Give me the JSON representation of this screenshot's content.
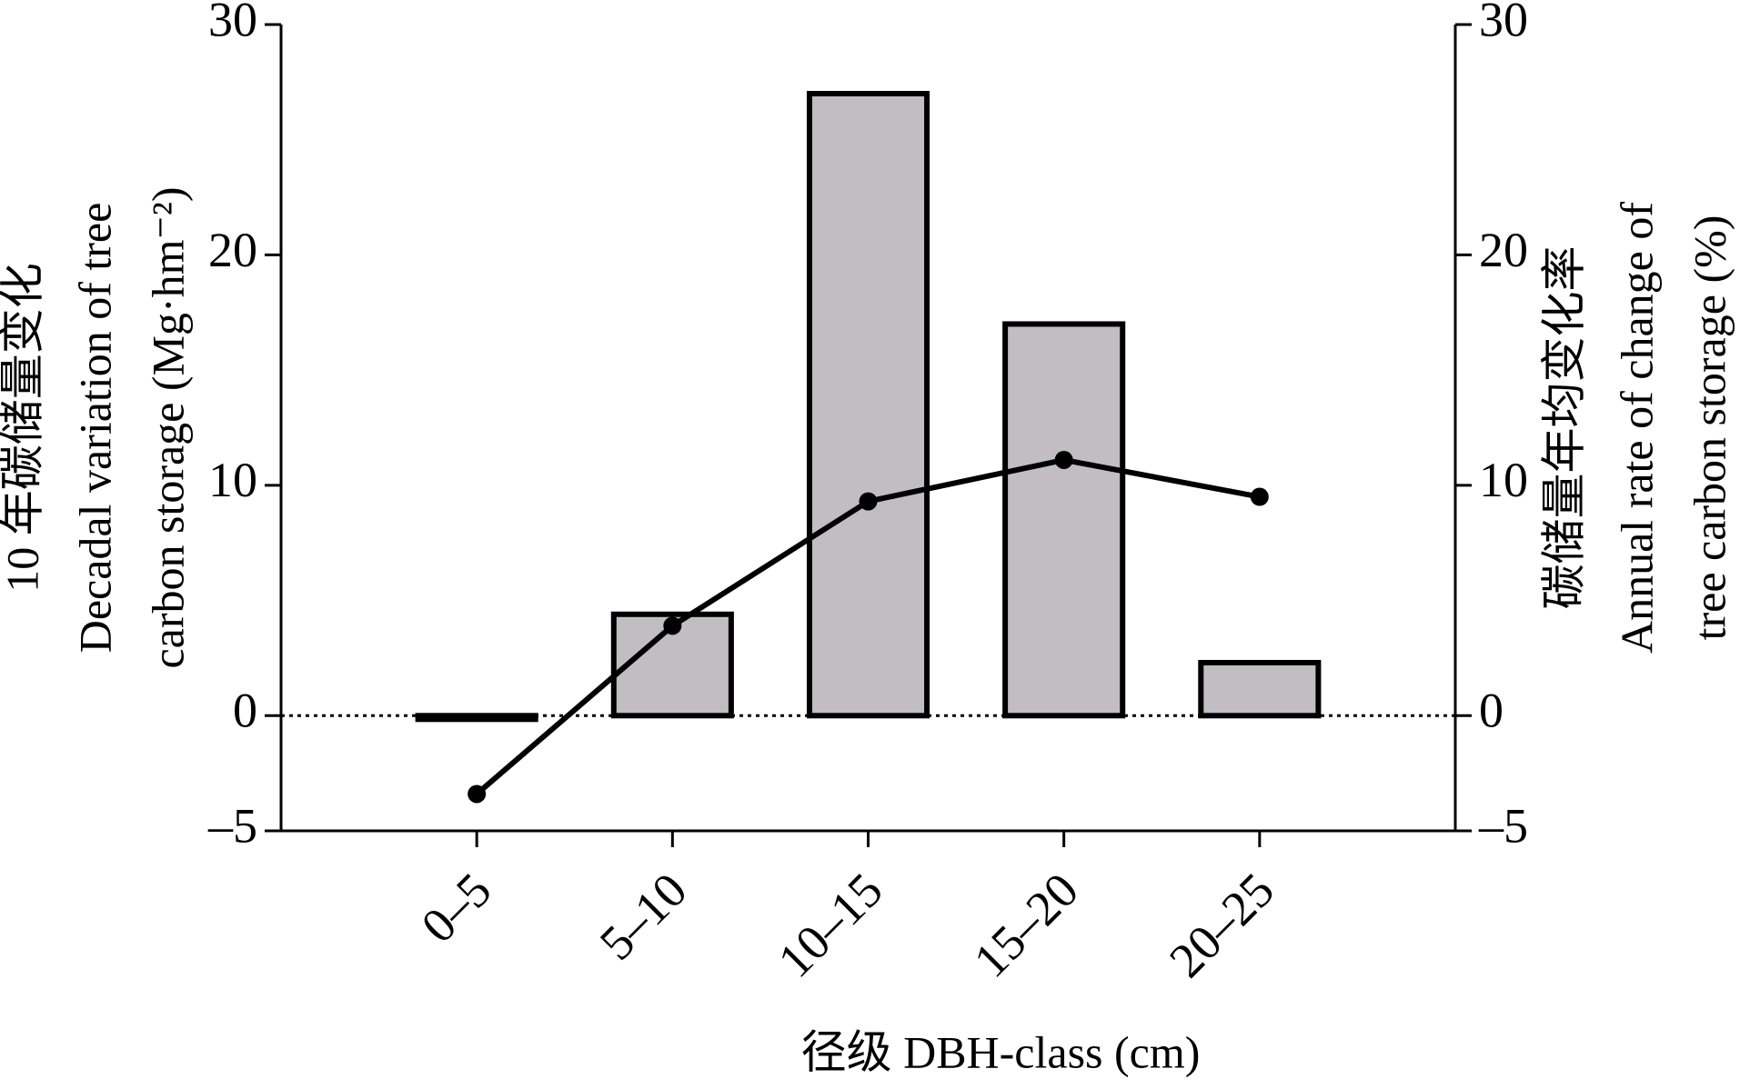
{
  "chart_data": {
    "type": "bar",
    "categories": [
      "0–5",
      "5–10",
      "10–15",
      "15–20",
      "20–25"
    ],
    "x_label": "径级 DBH-class (cm)",
    "y_label": [
      "10 年碳储量变化",
      "Decadal variation of tree",
      "carbon storage (Mg·hm⁻²)"
    ],
    "y2_label": [
      "碳储量年均变化率",
      "Annual rate of change of",
      "tree carbon storage (%)"
    ],
    "ylim": [
      -5,
      30
    ],
    "yticks": [
      {
        "value": -5,
        "label": "–5"
      },
      0,
      10,
      20,
      30
    ],
    "y2lim": [
      -5,
      30
    ],
    "y2ticks": [
      {
        "value": -5,
        "label": "–5"
      },
      0,
      10,
      20,
      30
    ],
    "series": [
      {
        "type": "bar",
        "color": "#c1bdc3",
        "values": [
          -0.1,
          4.4,
          27,
          17,
          2.3
        ]
      },
      {
        "type": "line",
        "axis": "y2",
        "color": "#000000",
        "values": [
          -3.4,
          3.9,
          9.3,
          11.1,
          9.5
        ]
      }
    ]
  }
}
